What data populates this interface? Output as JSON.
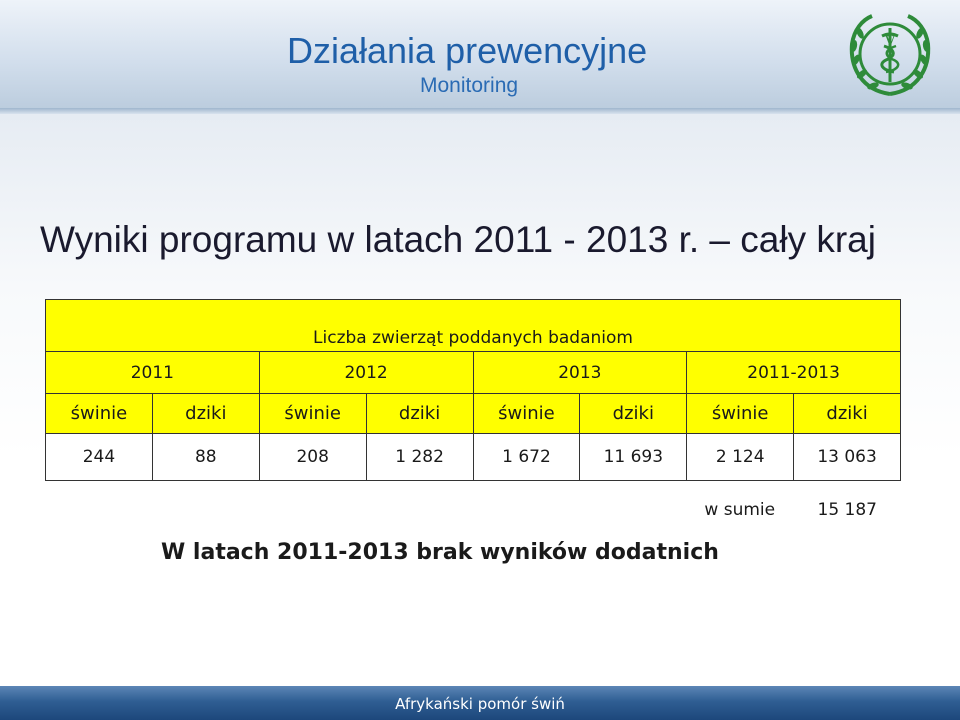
{
  "header": {
    "title": "Działania prewencyjne",
    "subtitle": "Monitoring",
    "logo": "veterinary-emblem"
  },
  "main": {
    "heading": "Wyniki programu w latach 2011 - 2013 r. – cały kraj",
    "table": {
      "caption": "Liczba zwierząt poddanych badaniom",
      "years": [
        "2011",
        "2012",
        "2013",
        "2011-2013"
      ],
      "species": [
        "świnie",
        "dziki",
        "świnie",
        "dziki",
        "świnie",
        "dziki",
        "świnie",
        "dziki"
      ],
      "values": [
        "244",
        "88",
        "208",
        "1 282",
        "1 672",
        "11 693",
        "2 124",
        "13 063"
      ]
    },
    "sum": {
      "label": "w sumie",
      "value": "15 187"
    },
    "note": "W latach 2011-2013 brak wyników dodatnich"
  },
  "footer": {
    "text": "Afrykański pomór świń"
  },
  "colors": {
    "title": "#1f5fa8",
    "table_fill": "#ffff00",
    "footer": "#2f5e93",
    "emblem_green": "#2e8b3a"
  }
}
